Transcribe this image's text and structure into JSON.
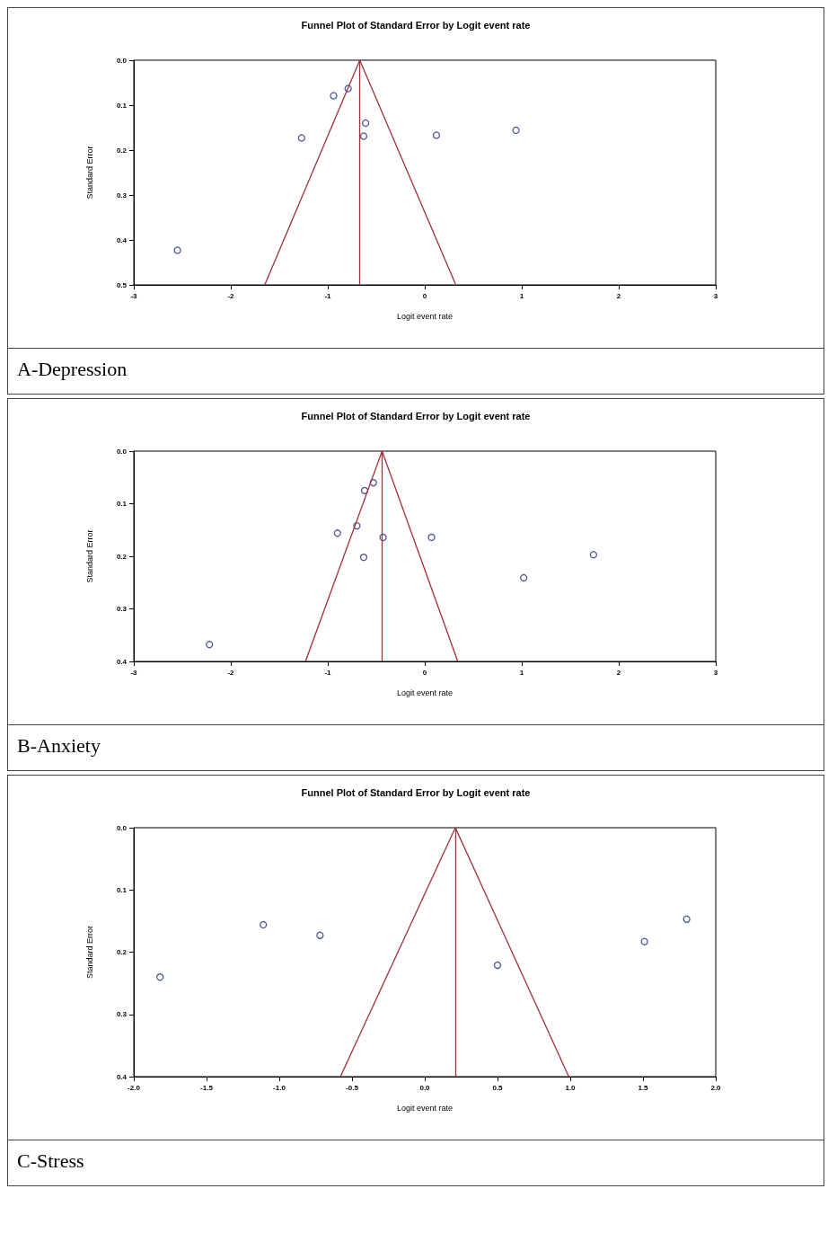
{
  "chart_data": [
    {
      "type": "scatter",
      "title": "Funnel Plot of Standard Error by Logit event rate",
      "xlabel": "Logit event rate",
      "ylabel": "Standard Error",
      "annotations": [
        "A-Depression"
      ],
      "grid": false,
      "xlim": [
        -3,
        3
      ],
      "xticks": [
        -3,
        -2,
        -1,
        0,
        1,
        2,
        3
      ],
      "ylim": [
        0.5,
        0
      ],
      "yticks": [
        {
          "value": 0,
          "label": "0.0"
        },
        {
          "value": 0.1,
          "label": "0.1"
        },
        {
          "value": 0.2,
          "label": "0.2"
        },
        {
          "value": 0.3,
          "label": "0.3"
        },
        {
          "value": 0.4,
          "label": "0.4"
        },
        {
          "value": 0.5,
          "label": "0.5"
        }
      ],
      "ref_lines": [
        {
          "axis": "x",
          "value": -0.67,
          "color": "#a0303a"
        }
      ],
      "series": [
        {
          "color": "#1f2a7a",
          "marker": "circle",
          "x": [
            -0.94,
            -0.79,
            -1.27,
            -0.61,
            -0.63,
            0.12,
            0.94,
            -2.55
          ],
          "values": [
            0.079,
            0.063,
            0.173,
            0.14,
            0.169,
            0.167,
            0.156,
            0.423
          ]
        },
        {
          "type": "line",
          "marker": "none",
          "color": "#a0303a",
          "x": [
            -1.65,
            -0.67,
            0.32
          ],
          "values": [
            0.5,
            0,
            0.5
          ]
        }
      ]
    },
    {
      "type": "scatter",
      "title": "Funnel Plot of Standard Error by Logit event rate",
      "xlabel": "Logit event rate",
      "ylabel": "Standard Error",
      "annotations": [
        "B-Anxiety"
      ],
      "grid": false,
      "xlim": [
        -3,
        3
      ],
      "xticks": [
        -3,
        -2,
        -1,
        0,
        1,
        2,
        3
      ],
      "ylim": [
        0.4,
        0
      ],
      "yticks": [
        {
          "value": 0,
          "label": "0.0"
        },
        {
          "value": 0.1,
          "label": "0.1"
        },
        {
          "value": 0.2,
          "label": "0.2"
        },
        {
          "value": 0.3,
          "label": "0.3"
        },
        {
          "value": 0.4,
          "label": "0.4"
        }
      ],
      "ref_lines": [
        {
          "axis": "x",
          "value": -0.44,
          "color": "#a0303a"
        }
      ],
      "series": [
        {
          "color": "#1f2a7a",
          "marker": "circle",
          "x": [
            -0.53,
            -0.62,
            -0.7,
            -0.9,
            -0.43,
            0.07,
            -0.63,
            1.02,
            1.74,
            -2.22
          ],
          "values": [
            0.06,
            0.075,
            0.142,
            0.156,
            0.164,
            0.164,
            0.202,
            0.241,
            0.197,
            0.368
          ]
        },
        {
          "type": "line",
          "marker": "none",
          "color": "#a0303a",
          "x": [
            -1.23,
            -0.44,
            0.34
          ],
          "values": [
            0.4,
            0,
            0.4
          ]
        }
      ]
    },
    {
      "type": "scatter",
      "title": "Funnel Plot of Standard Error by Logit event rate",
      "xlabel": "Logit event rate",
      "ylabel": "Standard Error",
      "annotations": [
        "C-Stress"
      ],
      "grid": false,
      "xlim": [
        -2,
        2
      ],
      "xticks": [
        {
          "value": -2,
          "label": "-2.0"
        },
        {
          "value": -1.5,
          "label": "-1.5"
        },
        {
          "value": -1,
          "label": "-1.0"
        },
        {
          "value": -0.5,
          "label": "-0.5"
        },
        {
          "value": 0,
          "label": "0.0"
        },
        {
          "value": 0.5,
          "label": "0.5"
        },
        {
          "value": 1,
          "label": "1.0"
        },
        {
          "value": 1.5,
          "label": "1.5"
        },
        {
          "value": 2,
          "label": "2.0"
        }
      ],
      "ylim": [
        0.4,
        0
      ],
      "yticks": [
        {
          "value": 0,
          "label": "0.0"
        },
        {
          "value": 0.1,
          "label": "0.1"
        },
        {
          "value": 0.2,
          "label": "0.2"
        },
        {
          "value": 0.3,
          "label": "0.3"
        },
        {
          "value": 0.4,
          "label": "0.4"
        }
      ],
      "ref_lines": [
        {
          "axis": "x",
          "value": 0.21,
          "color": "#a0303a"
        }
      ],
      "series": [
        {
          "color": "#1f2a7a",
          "marker": "circle",
          "x": [
            -1.82,
            -1.11,
            -0.72,
            0.5,
            1.51,
            1.8
          ],
          "values": [
            0.24,
            0.156,
            0.173,
            0.221,
            0.183,
            0.147
          ]
        },
        {
          "type": "line",
          "marker": "none",
          "color": "#a0303a",
          "x": [
            -0.58,
            0.21,
            0.99
          ],
          "values": [
            0.4,
            0,
            0.4
          ]
        }
      ]
    }
  ]
}
